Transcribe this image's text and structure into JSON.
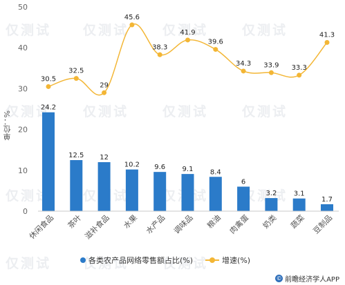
{
  "chart_data": {
    "type": "bar+line",
    "categories": [
      "休闲食品",
      "茶叶",
      "滋补食品",
      "水果",
      "水产品",
      "调味品",
      "粮油",
      "肉禽蛋",
      "奶类",
      "蔬菜",
      "豆制品"
    ],
    "series": [
      {
        "name": "各类农产品网络零售额占比(%)",
        "type": "bar",
        "axis": "left",
        "values": [
          24.2,
          12.5,
          12,
          10.2,
          9.6,
          9.1,
          8.4,
          6,
          3.2,
          3.1,
          1.7
        ],
        "value_labels": [
          "24.2",
          "12.5",
          "12",
          "10.2",
          "9.6",
          "9.1",
          "8.4",
          "6",
          "3.2",
          "3.1",
          "1.7"
        ],
        "color": "#2b7bc9"
      },
      {
        "name": "增速(%)",
        "type": "line",
        "axis": "left",
        "values": [
          30.5,
          32.5,
          29,
          45.6,
          38.3,
          41.9,
          39.6,
          34.3,
          33.9,
          33.3,
          41.3
        ],
        "value_labels": [
          "30.5",
          "32.5",
          "29",
          "45.6",
          "38.3",
          "41.9",
          "39.6",
          "34.3",
          "33.9",
          "33.3",
          "41.3"
        ],
        "color": "#f3b635"
      }
    ],
    "ylabel": "单位：%",
    "ylim": [
      0,
      50
    ],
    "yticks": [
      "0",
      "10",
      "20",
      "30",
      "40",
      "50"
    ],
    "grid": false,
    "legend_position": "bottom"
  },
  "source": "前瞻经济学人APP",
  "watermark": "仅测试"
}
